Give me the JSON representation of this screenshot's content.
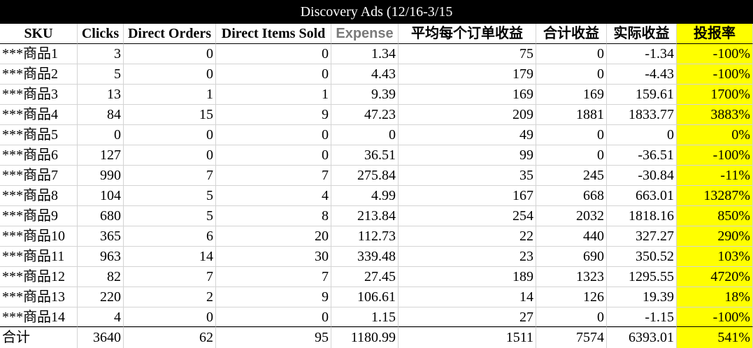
{
  "title": "Discovery Ads (12/16-3/15",
  "headers": [
    "SKU",
    "Clicks",
    "Direct Orders",
    "Direct Items Sold",
    "Expense",
    "平均每个订单收益",
    "合计收益",
    "实际收益",
    "投报率"
  ],
  "rows": [
    [
      "***商品1",
      "3",
      "0",
      "0",
      "1.34",
      "75",
      "0",
      "-1.34",
      "-100%"
    ],
    [
      "***商品2",
      "5",
      "0",
      "0",
      "4.43",
      "179",
      "0",
      "-4.43",
      "-100%"
    ],
    [
      "***商品3",
      "13",
      "1",
      "1",
      "9.39",
      "169",
      "169",
      "159.61",
      "1700%"
    ],
    [
      "***商品4",
      "84",
      "15",
      "9",
      "47.23",
      "209",
      "1881",
      "1833.77",
      "3883%"
    ],
    [
      "***商品5",
      "0",
      "0",
      "0",
      "0",
      "49",
      "0",
      "0",
      "0%"
    ],
    [
      "***商品6",
      "127",
      "0",
      "0",
      "36.51",
      "99",
      "0",
      "-36.51",
      "-100%"
    ],
    [
      "***商品7",
      "990",
      "7",
      "7",
      "275.84",
      "35",
      "245",
      "-30.84",
      "-11%"
    ],
    [
      "***商品8",
      "104",
      "5",
      "4",
      "4.99",
      "167",
      "668",
      "663.01",
      "13287%"
    ],
    [
      "***商品9",
      "680",
      "5",
      "8",
      "213.84",
      "254",
      "2032",
      "1818.16",
      "850%"
    ],
    [
      "***商品10",
      "365",
      "6",
      "20",
      "112.73",
      "22",
      "440",
      "327.27",
      "290%"
    ],
    [
      "***商品11",
      "963",
      "14",
      "30",
      "339.48",
      "23",
      "690",
      "350.52",
      "103%"
    ],
    [
      "***商品12",
      "82",
      "7",
      "7",
      "27.45",
      "189",
      "1323",
      "1295.55",
      "4720%"
    ],
    [
      "***商品13",
      "220",
      "2",
      "9",
      "106.61",
      "14",
      "126",
      "19.39",
      "18%"
    ],
    [
      "***商品14",
      "4",
      "0",
      "0",
      "1.15",
      "27",
      "0",
      "-1.15",
      "-100%"
    ]
  ],
  "total": [
    "合计",
    "3640",
    "62",
    "95",
    "1180.99",
    "1511",
    "7574",
    "6393.01",
    "541%"
  ],
  "colors": {
    "title_bg": "#000000",
    "title_text": "#ffffff",
    "roi_highlight": "#ffff00",
    "expense_header": "#7a7a7a"
  }
}
